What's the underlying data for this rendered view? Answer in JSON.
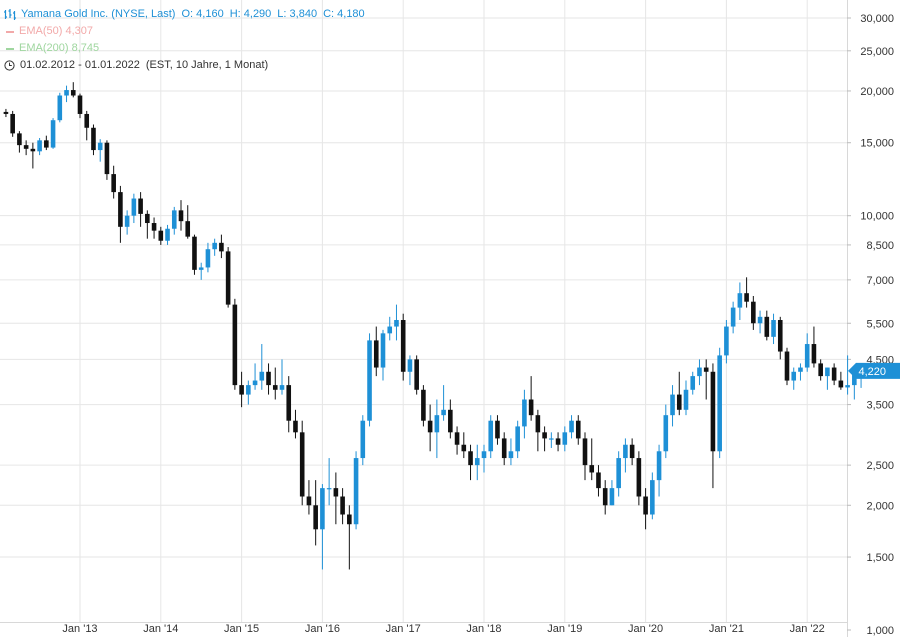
{
  "header": {
    "title": "Yamana Gold Inc. (NYSE, Last)",
    "ohlc": {
      "o_label": "O:",
      "o": "4,160",
      "h_label": "H:",
      "h": "4,290",
      "l_label": "L:",
      "l": "3,840",
      "c_label": "C:",
      "c": "4,180"
    },
    "ema50": {
      "label": "EMA(50)",
      "value": "4,307"
    },
    "ema200": {
      "label": "EMA(200)",
      "value": "8,745"
    },
    "range": {
      "dates": "01.02.2012 - 01.01.2022",
      "info": "(EST, 10 Jahre, 1 Monat)"
    }
  },
  "colors": {
    "up": "#1e90d6",
    "down": "#111111",
    "accent": "#1e90d6",
    "grid": "#e6e6e6",
    "axis_text": "#333333"
  },
  "chart_data": {
    "type": "candlestick",
    "title": "Yamana Gold Inc. (NYSE, Last)",
    "y_scale": "log",
    "ylim": [
      1.0,
      34.0
    ],
    "xlim": [
      2012.0,
      2022.1
    ],
    "y_ticks": [
      {
        "value": 30,
        "label": "30,000"
      },
      {
        "value": 25,
        "label": "25,000"
      },
      {
        "value": 20,
        "label": "20,000"
      },
      {
        "value": 15,
        "label": "15,000"
      },
      {
        "value": 10,
        "label": "10,000"
      },
      {
        "value": 8.5,
        "label": "8,500"
      },
      {
        "value": 7,
        "label": "7,000"
      },
      {
        "value": 5.5,
        "label": "5,500"
      },
      {
        "value": 4.5,
        "label": "4,500"
      },
      {
        "value": 3.5,
        "label": "3,500"
      },
      {
        "value": 2.5,
        "label": "2,500"
      },
      {
        "value": 2,
        "label": "2,000"
      },
      {
        "value": 1.5,
        "label": "1,500"
      },
      {
        "value": 1,
        "label": "1,000"
      }
    ],
    "x_ticks": [
      {
        "value": 2013,
        "label": "Jan '13"
      },
      {
        "value": 2014,
        "label": "Jan '14"
      },
      {
        "value": 2015,
        "label": "Jan '15"
      },
      {
        "value": 2016,
        "label": "Jan '16"
      },
      {
        "value": 2017,
        "label": "Jan '17"
      },
      {
        "value": 2018,
        "label": "Jan '18"
      },
      {
        "value": 2019,
        "label": "Jan '19"
      },
      {
        "value": 2020,
        "label": "Jan '20"
      },
      {
        "value": 2021,
        "label": "Jan '21"
      },
      {
        "value": 2022,
        "label": "Jan '22"
      }
    ],
    "last_price": {
      "value": 4.22,
      "label": "4,220"
    },
    "start": "2012-02",
    "candles": [
      [
        17.8,
        18.1,
        17.3,
        17.6
      ],
      [
        17.6,
        17.9,
        15.5,
        15.8
      ],
      [
        15.8,
        16.0,
        14.2,
        14.8
      ],
      [
        14.8,
        15.2,
        14.0,
        14.5
      ],
      [
        14.5,
        15.0,
        13.0,
        14.3
      ],
      [
        14.3,
        15.4,
        14.0,
        15.2
      ],
      [
        15.2,
        15.6,
        14.4,
        14.6
      ],
      [
        14.6,
        17.2,
        14.5,
        17.0
      ],
      [
        17.0,
        19.8,
        16.8,
        19.5
      ],
      [
        19.5,
        20.6,
        18.8,
        20.1
      ],
      [
        20.1,
        21.0,
        19.3,
        19.5
      ],
      [
        19.5,
        19.7,
        17.2,
        17.6
      ],
      [
        17.6,
        17.9,
        15.2,
        16.3
      ],
      [
        16.3,
        16.6,
        14.0,
        14.4
      ],
      [
        14.4,
        15.3,
        13.5,
        15.0
      ],
      [
        15.0,
        15.2,
        12.2,
        12.6
      ],
      [
        12.6,
        13.2,
        11.0,
        11.4
      ],
      [
        11.4,
        11.8,
        8.6,
        9.4
      ],
      [
        9.4,
        10.3,
        9.0,
        10.0
      ],
      [
        10.0,
        11.3,
        9.6,
        11.0
      ],
      [
        11.0,
        11.4,
        9.4,
        10.1
      ],
      [
        10.1,
        10.3,
        8.8,
        9.6
      ],
      [
        9.6,
        9.9,
        8.8,
        9.2
      ],
      [
        9.2,
        9.4,
        8.5,
        8.7
      ],
      [
        8.7,
        9.5,
        8.5,
        9.3
      ],
      [
        9.3,
        10.5,
        9.0,
        10.3
      ],
      [
        10.3,
        10.9,
        9.2,
        9.7
      ],
      [
        9.7,
        10.6,
        8.8,
        8.9
      ],
      [
        8.9,
        9.0,
        7.2,
        7.4
      ],
      [
        7.4,
        7.7,
        7.0,
        7.5
      ],
      [
        7.5,
        8.6,
        7.3,
        8.3
      ],
      [
        8.3,
        8.8,
        8.0,
        8.6
      ],
      [
        8.6,
        9.0,
        7.9,
        8.2
      ],
      [
        8.2,
        8.4,
        6.0,
        6.1
      ],
      [
        6.1,
        6.3,
        3.8,
        3.9
      ],
      [
        3.9,
        4.2,
        3.45,
        3.7
      ],
      [
        3.7,
        4.0,
        3.5,
        3.9
      ],
      [
        3.9,
        4.4,
        3.8,
        4.0
      ],
      [
        4.0,
        4.9,
        3.8,
        4.2
      ],
      [
        4.2,
        4.4,
        3.7,
        3.9
      ],
      [
        3.9,
        4.3,
        3.6,
        3.8
      ],
      [
        3.8,
        4.5,
        3.7,
        3.9
      ],
      [
        3.9,
        4.1,
        3.0,
        3.2
      ],
      [
        3.2,
        3.4,
        2.9,
        3.0
      ],
      [
        3.0,
        3.2,
        2.0,
        2.1
      ],
      [
        2.1,
        2.3,
        1.9,
        2.0
      ],
      [
        2.0,
        2.3,
        1.6,
        1.75
      ],
      [
        1.75,
        2.25,
        1.4,
        2.2
      ],
      [
        2.2,
        2.6,
        2.0,
        2.2
      ],
      [
        2.2,
        2.4,
        1.8,
        2.1
      ],
      [
        2.1,
        2.2,
        1.8,
        1.9
      ],
      [
        1.9,
        2.0,
        1.4,
        1.8
      ],
      [
        1.8,
        2.7,
        1.75,
        2.6
      ],
      [
        2.6,
        3.3,
        2.5,
        3.2
      ],
      [
        3.2,
        5.2,
        3.1,
        5.0
      ],
      [
        5.0,
        5.4,
        4.1,
        4.3
      ],
      [
        4.3,
        5.3,
        4.0,
        5.2
      ],
      [
        5.2,
        5.7,
        5.0,
        5.4
      ],
      [
        5.4,
        6.1,
        5.0,
        5.6
      ],
      [
        5.6,
        5.8,
        4.0,
        4.2
      ],
      [
        4.2,
        4.6,
        3.9,
        4.5
      ],
      [
        4.5,
        4.6,
        3.7,
        3.8
      ],
      [
        3.8,
        3.9,
        3.1,
        3.2
      ],
      [
        3.2,
        3.5,
        2.7,
        3.0
      ],
      [
        3.0,
        3.6,
        2.6,
        3.3
      ],
      [
        3.3,
        3.9,
        3.2,
        3.4
      ],
      [
        3.4,
        3.6,
        2.9,
        3.0
      ],
      [
        3.0,
        3.1,
        2.65,
        2.8
      ],
      [
        2.8,
        3.0,
        2.6,
        2.7
      ],
      [
        2.7,
        2.8,
        2.3,
        2.5
      ],
      [
        2.5,
        2.8,
        2.3,
        2.6
      ],
      [
        2.6,
        2.8,
        2.4,
        2.7
      ],
      [
        2.7,
        3.3,
        2.6,
        3.2
      ],
      [
        3.2,
        3.3,
        2.8,
        2.9
      ],
      [
        2.9,
        3.0,
        2.5,
        2.6
      ],
      [
        2.6,
        2.9,
        2.5,
        2.7
      ],
      [
        2.7,
        3.2,
        2.6,
        3.1
      ],
      [
        3.1,
        3.8,
        2.9,
        3.6
      ],
      [
        3.6,
        4.1,
        3.2,
        3.3
      ],
      [
        3.3,
        3.4,
        2.7,
        3.0
      ],
      [
        3.0,
        3.1,
        2.7,
        2.9
      ],
      [
        2.9,
        3.0,
        2.75,
        2.9
      ],
      [
        2.9,
        3.0,
        2.7,
        2.8
      ],
      [
        2.8,
        3.1,
        2.7,
        3.0
      ],
      [
        3.0,
        3.3,
        2.9,
        3.2
      ],
      [
        3.2,
        3.3,
        2.8,
        2.9
      ],
      [
        2.9,
        3.0,
        2.3,
        2.5
      ],
      [
        2.5,
        2.9,
        2.3,
        2.4
      ],
      [
        2.4,
        2.5,
        2.1,
        2.2
      ],
      [
        2.2,
        2.3,
        1.9,
        2.0
      ],
      [
        2.0,
        2.3,
        2.0,
        2.2
      ],
      [
        2.2,
        2.7,
        2.1,
        2.6
      ],
      [
        2.6,
        2.9,
        2.4,
        2.8
      ],
      [
        2.8,
        2.9,
        2.5,
        2.6
      ],
      [
        2.6,
        2.7,
        2.0,
        2.1
      ],
      [
        2.1,
        2.2,
        1.75,
        1.9
      ],
      [
        1.9,
        2.4,
        1.85,
        2.3
      ],
      [
        2.3,
        2.8,
        2.1,
        2.7
      ],
      [
        2.7,
        3.5,
        2.6,
        3.3
      ],
      [
        3.3,
        3.9,
        3.1,
        3.7
      ],
      [
        3.7,
        4.2,
        3.3,
        3.4
      ],
      [
        3.4,
        4.0,
        3.3,
        3.8
      ],
      [
        3.8,
        4.2,
        3.7,
        4.1
      ],
      [
        4.1,
        4.5,
        3.9,
        4.3
      ],
      [
        4.3,
        4.5,
        3.6,
        4.2
      ],
      [
        4.2,
        4.4,
        2.2,
        2.7
      ],
      [
        2.7,
        4.8,
        2.6,
        4.6
      ],
      [
        4.6,
        5.6,
        4.4,
        5.4
      ],
      [
        5.4,
        6.2,
        5.2,
        6.0
      ],
      [
        6.0,
        6.9,
        5.6,
        6.5
      ],
      [
        6.5,
        7.1,
        6.0,
        6.2
      ],
      [
        6.2,
        6.4,
        5.3,
        5.5
      ],
      [
        5.5,
        5.9,
        5.2,
        5.7
      ],
      [
        5.7,
        5.9,
        5.0,
        5.1
      ],
      [
        5.1,
        5.8,
        4.9,
        5.6
      ],
      [
        5.6,
        5.7,
        4.5,
        4.7
      ],
      [
        4.7,
        4.8,
        3.9,
        4.0
      ],
      [
        4.0,
        4.3,
        3.8,
        4.2
      ],
      [
        4.2,
        4.4,
        4.0,
        4.3
      ],
      [
        4.3,
        5.2,
        4.2,
        4.9
      ],
      [
        4.9,
        5.4,
        4.3,
        4.4
      ],
      [
        4.4,
        4.5,
        4.0,
        4.1
      ],
      [
        4.1,
        4.3,
        3.8,
        4.3
      ],
      [
        4.3,
        4.4,
        3.9,
        4.0
      ],
      [
        4.0,
        4.2,
        3.8,
        3.85
      ],
      [
        3.85,
        4.6,
        3.7,
        3.9
      ],
      [
        3.9,
        4.2,
        3.6,
        4.16
      ],
      [
        4.16,
        4.29,
        3.84,
        4.18
      ]
    ]
  }
}
